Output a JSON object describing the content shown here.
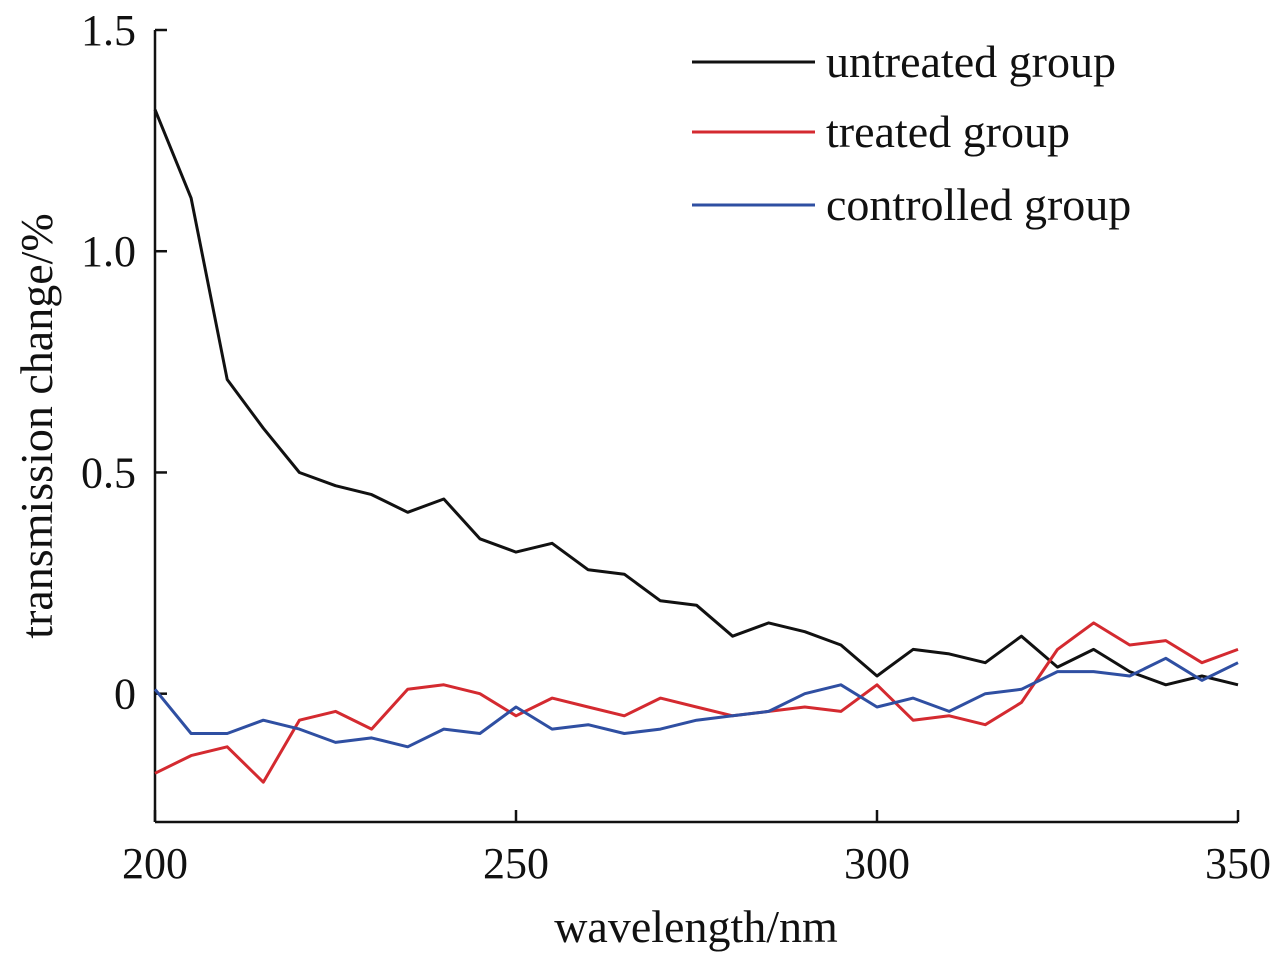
{
  "chart_data": {
    "type": "line",
    "title": "",
    "xlabel": "wavelength/nm",
    "ylabel": "transmission change/%",
    "xlim": [
      200,
      350
    ],
    "ylim": [
      -0.3,
      1.5
    ],
    "grid": false,
    "legend_position": "top-right",
    "x_ticks": [
      {
        "value": 200,
        "label": "200"
      },
      {
        "value": 250,
        "label": "250"
      },
      {
        "value": 300,
        "label": "300"
      },
      {
        "value": 350,
        "label": "350"
      }
    ],
    "y_ticks": [
      {
        "value": 0,
        "label": "0"
      },
      {
        "value": 0.5,
        "label": "0.5"
      },
      {
        "value": 1.0,
        "label": "1.0"
      },
      {
        "value": 1.5,
        "label": "1.5"
      }
    ],
    "x": [
      200,
      205,
      210,
      215,
      220,
      225,
      230,
      235,
      240,
      245,
      250,
      255,
      260,
      265,
      270,
      275,
      280,
      285,
      290,
      295,
      300,
      305,
      310,
      315,
      320,
      325,
      330,
      335,
      340,
      345,
      350
    ],
    "series": [
      {
        "name": "untreated group",
        "color": "#111111",
        "values": [
          1.32,
          1.12,
          0.71,
          0.6,
          0.5,
          0.47,
          0.45,
          0.41,
          0.44,
          0.35,
          0.32,
          0.34,
          0.28,
          0.27,
          0.21,
          0.2,
          0.13,
          0.16,
          0.14,
          0.11,
          0.04,
          0.1,
          0.09,
          0.07,
          0.13,
          0.06,
          0.1,
          0.05,
          0.02,
          0.04,
          0.02
        ]
      },
      {
        "name": "treated group",
        "color": "#d42a30",
        "values": [
          -0.18,
          -0.14,
          -0.12,
          -0.2,
          -0.06,
          -0.04,
          -0.08,
          0.01,
          0.02,
          0.0,
          -0.05,
          -0.01,
          -0.03,
          -0.05,
          -0.01,
          -0.03,
          -0.05,
          -0.04,
          -0.03,
          -0.04,
          0.02,
          -0.06,
          -0.05,
          -0.07,
          -0.02,
          0.1,
          0.16,
          0.11,
          0.12,
          0.07,
          0.1
        ]
      },
      {
        "name": "controlled group",
        "color": "#2f4fa2",
        "values": [
          0.01,
          -0.09,
          -0.09,
          -0.06,
          -0.08,
          -0.11,
          -0.1,
          -0.12,
          -0.08,
          -0.09,
          -0.03,
          -0.08,
          -0.07,
          -0.09,
          -0.08,
          -0.06,
          -0.05,
          -0.04,
          0.0,
          0.02,
          -0.03,
          -0.01,
          -0.04,
          0.0,
          0.01,
          0.05,
          0.05,
          0.04,
          0.08,
          0.03,
          0.07
        ]
      }
    ]
  }
}
